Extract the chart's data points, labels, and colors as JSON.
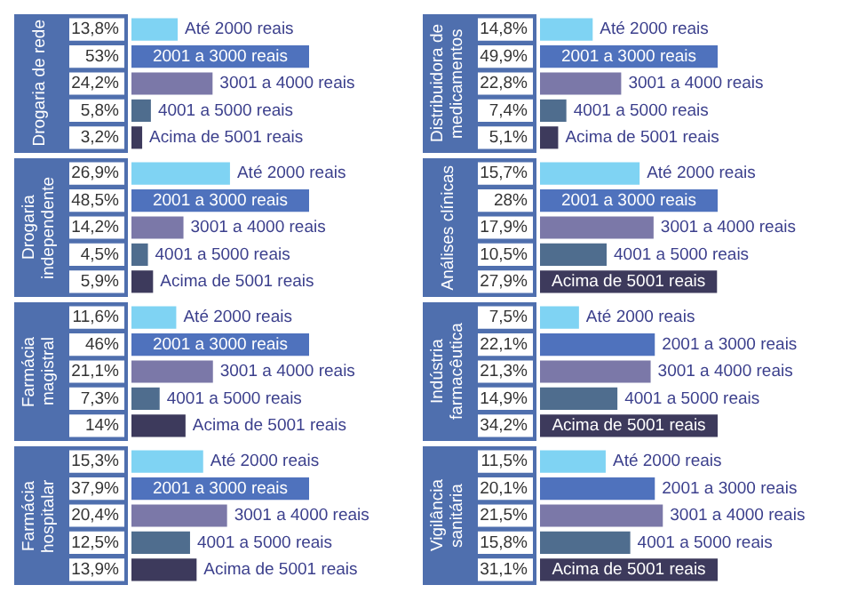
{
  "chart_data": [
    {
      "type": "bar",
      "orientation": "horizontal",
      "title": "Drogaria de rede",
      "categories": [
        "Até 2000 reais",
        "2001 a 3000 reais",
        "3001 a 4000 reais",
        "4001 a 5000 reais",
        "Acima de 5001 reais"
      ],
      "values": [
        13.8,
        53,
        24.2,
        5.8,
        3.2
      ],
      "value_labels": [
        "13,8%",
        "53%",
        "24,2%",
        "5,8%",
        "3,2%"
      ],
      "colors": [
        "#7fd3f3",
        "#4f72bd",
        "#7b78a8",
        "#4f6d8e",
        "#3d3a5c"
      ]
    },
    {
      "type": "bar",
      "orientation": "horizontal",
      "title": "Distribuidora de medicamentos",
      "categories": [
        "Até 2000 reais",
        "2001 a 3000 reais",
        "3001 a 4000 reais",
        "4001 a 5000 reais",
        "Acima de 5001 reais"
      ],
      "values": [
        14.8,
        49.9,
        22.8,
        7.4,
        5.1
      ],
      "value_labels": [
        "14,8%",
        "49,9%",
        "22,8%",
        "7,4%",
        "5,1%"
      ],
      "colors": [
        "#7fd3f3",
        "#4f72bd",
        "#7b78a8",
        "#4f6d8e",
        "#3d3a5c"
      ]
    },
    {
      "type": "bar",
      "orientation": "horizontal",
      "title": "Drogaria independente",
      "categories": [
        "Até 2000 reais",
        "2001 a 3000 reais",
        "3001 a 4000 reais",
        "4001 a 5000 reais",
        "Acima de 5001 reais"
      ],
      "values": [
        26.9,
        48.5,
        14.2,
        4.5,
        5.9
      ],
      "value_labels": [
        "26,9%",
        "48,5%",
        "14,2%",
        "4,5%",
        "5,9%"
      ],
      "colors": [
        "#7fd3f3",
        "#4f72bd",
        "#7b78a8",
        "#4f6d8e",
        "#3d3a5c"
      ]
    },
    {
      "type": "bar",
      "orientation": "horizontal",
      "title": "Análises clínicas",
      "categories": [
        "Até 2000 reais",
        "2001 a 3000 reais",
        "3001 a 4000 reais",
        "4001 a 5000 reais",
        "Acima de 5001 reais"
      ],
      "values": [
        15.7,
        28,
        17.9,
        10.5,
        27.9
      ],
      "value_labels": [
        "15,7%",
        "28%",
        "17,9%",
        "10,5%",
        "27,9%"
      ],
      "colors": [
        "#7fd3f3",
        "#4f72bd",
        "#7b78a8",
        "#4f6d8e",
        "#3d3a5c"
      ]
    },
    {
      "type": "bar",
      "orientation": "horizontal",
      "title": "Farmácia magistral",
      "categories": [
        "Até 2000 reais",
        "2001 a 3000 reais",
        "3001 a 4000 reais",
        "4001 a 5000 reais",
        "Acima de 5001 reais"
      ],
      "values": [
        11.6,
        46,
        21.1,
        7.3,
        14
      ],
      "value_labels": [
        "11,6%",
        "46%",
        "21,1%",
        "7,3%",
        "14%"
      ],
      "colors": [
        "#7fd3f3",
        "#4f72bd",
        "#7b78a8",
        "#4f6d8e",
        "#3d3a5c"
      ]
    },
    {
      "type": "bar",
      "orientation": "horizontal",
      "title": "Indústria farmacêutica",
      "categories": [
        "Até 2000 reais",
        "2001 a 3000 reais",
        "3001 a 4000 reais",
        "4001 a 5000 reais",
        "Acima de 5001 reais"
      ],
      "values": [
        7.5,
        22.1,
        21.3,
        14.9,
        34.2
      ],
      "value_labels": [
        "7,5%",
        "22,1%",
        "21,3%",
        "14,9%",
        "34,2%"
      ],
      "colors": [
        "#7fd3f3",
        "#4f72bd",
        "#7b78a8",
        "#4f6d8e",
        "#3d3a5c"
      ]
    },
    {
      "type": "bar",
      "orientation": "horizontal",
      "title": "Farmácia hospitalar",
      "categories": [
        "Até 2000 reais",
        "2001 a 3000 reais",
        "3001 a 4000 reais",
        "4001 a 5000 reais",
        "Acima de 5001 reais"
      ],
      "values": [
        15.3,
        37.9,
        20.4,
        12.5,
        13.9
      ],
      "value_labels": [
        "15,3%",
        "37,9%",
        "20,4%",
        "12,5%",
        "13,9%"
      ],
      "colors": [
        "#7fd3f3",
        "#4f72bd",
        "#7b78a8",
        "#4f6d8e",
        "#3d3a5c"
      ]
    },
    {
      "type": "bar",
      "orientation": "horizontal",
      "title": "Vigilância sanitária",
      "categories": [
        "Até 2000 reais",
        "2001 a 3000 reais",
        "3001 a 4000 reais",
        "4001 a 5000 reais",
        "Acima de 5001 reais"
      ],
      "values": [
        11.5,
        20.1,
        21.5,
        15.8,
        31.1
      ],
      "value_labels": [
        "11,5%",
        "20,1%",
        "21,5%",
        "15,8%",
        "31,1%"
      ],
      "colors": [
        "#7fd3f3",
        "#4f72bd",
        "#7b78a8",
        "#4f6d8e",
        "#3d3a5c"
      ]
    }
  ]
}
